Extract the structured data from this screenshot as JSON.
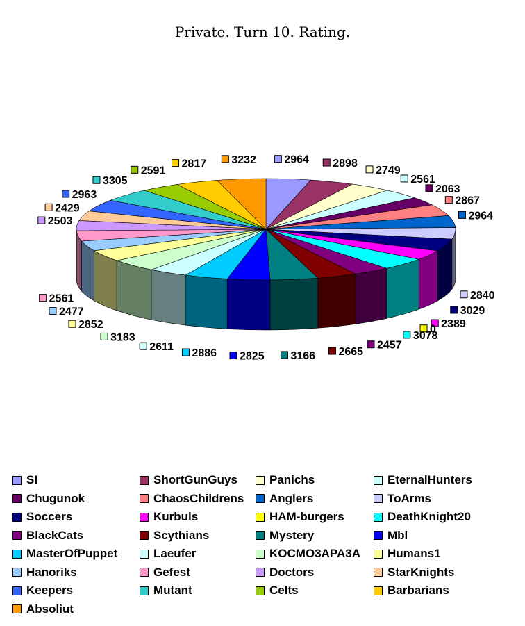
{
  "chart_data": {
    "type": "pie",
    "title": "Private. Turn 10. Rating.",
    "series": [
      {
        "name": "SI",
        "value": 2964,
        "color": "#9999FF"
      },
      {
        "name": "ShortGunGuys",
        "value": 2898,
        "color": "#993366"
      },
      {
        "name": "Panichs",
        "value": 2749,
        "color": "#FFFFCC"
      },
      {
        "name": "EternalHunters",
        "value": 2561,
        "color": "#CCFFFF"
      },
      {
        "name": "Chugunok",
        "value": 2063,
        "color": "#660066"
      },
      {
        "name": "ChaosChildrens",
        "value": 2867,
        "color": "#FF8080"
      },
      {
        "name": "Anglers",
        "value": 2964,
        "color": "#0066CC"
      },
      {
        "name": "ToArms",
        "value": 2840,
        "color": "#CCCCFF"
      },
      {
        "name": "Soccers",
        "value": 3029,
        "color": "#000080"
      },
      {
        "name": "Kurbuls",
        "value": 2389,
        "color": "#FF00FF"
      },
      {
        "name": "HAM-burgers",
        "value": 0,
        "color": "#FFFF00"
      },
      {
        "name": "DeathKnight20",
        "value": 3078,
        "color": "#00FFFF"
      },
      {
        "name": "BlackCats",
        "value": 2457,
        "color": "#800080"
      },
      {
        "name": "Scythians",
        "value": 2665,
        "color": "#800000"
      },
      {
        "name": "Mystery",
        "value": 3166,
        "color": "#008080"
      },
      {
        "name": "Mbl",
        "value": 2825,
        "color": "#0000FF"
      },
      {
        "name": "MasterOfPuppet",
        "value": 2886,
        "color": "#00CCFF"
      },
      {
        "name": "Laeufer",
        "value": 2611,
        "color": "#CCFFFF"
      },
      {
        "name": "KOCMO3APA3A",
        "value": 3183,
        "color": "#CCFFCC"
      },
      {
        "name": "Humans1",
        "value": 2852,
        "color": "#FFFF99"
      },
      {
        "name": "Hanoriks",
        "value": 2477,
        "color": "#99CCFF"
      },
      {
        "name": "Gefest",
        "value": 2561,
        "color": "#FF99CC"
      },
      {
        "name": "Doctors",
        "value": 2503,
        "color": "#CC99FF"
      },
      {
        "name": "StarKnights",
        "value": 2429,
        "color": "#FFCC99"
      },
      {
        "name": "Keepers",
        "value": 2963,
        "color": "#3366FF"
      },
      {
        "name": "Mutant",
        "value": 3305,
        "color": "#33CCCC"
      },
      {
        "name": "Celts",
        "value": 2591,
        "color": "#99CC00"
      },
      {
        "name": "Barbarians",
        "value": 2817,
        "color": "#FFCC00"
      },
      {
        "name": "Absoliut",
        "value": 3232,
        "color": "#FF9900"
      }
    ],
    "legend_position": "bottom",
    "style": "3d-pie"
  }
}
